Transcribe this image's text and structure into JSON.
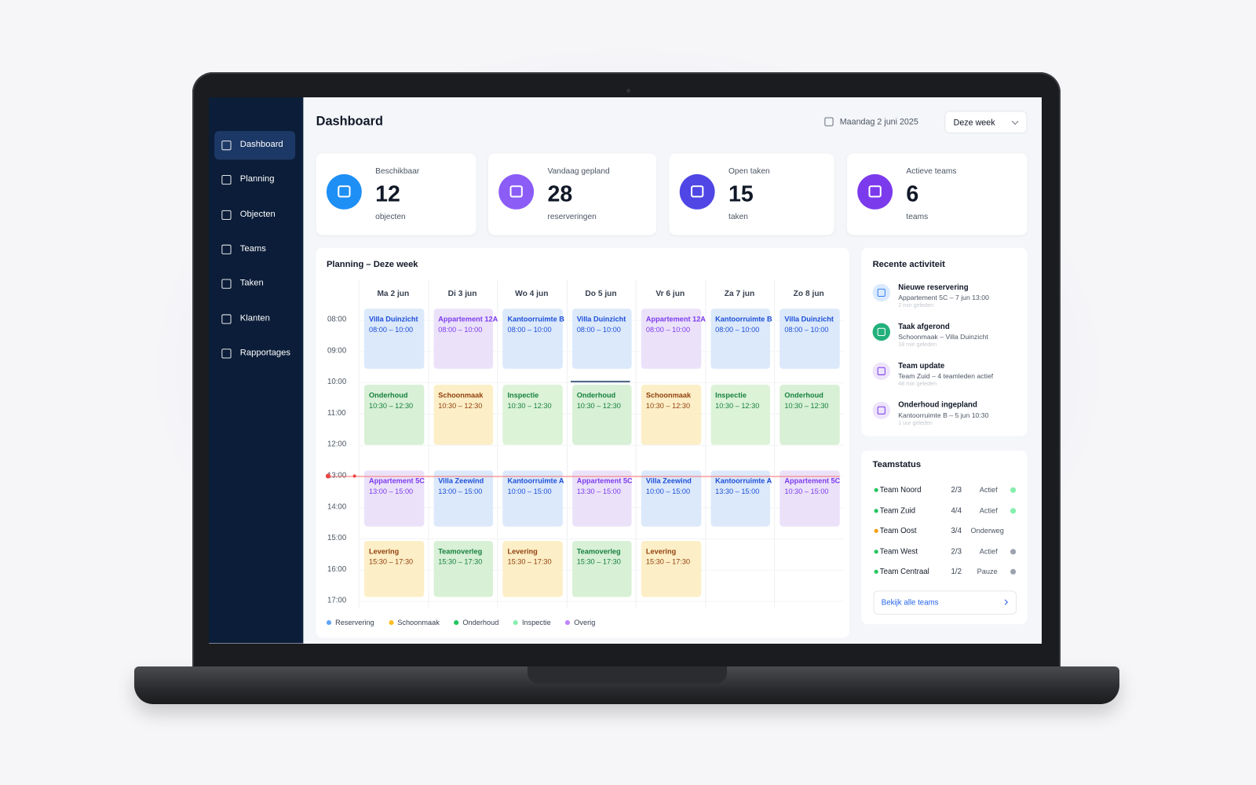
{
  "sidebar": {
    "active_index": 0,
    "items": [
      "Dashboard",
      "Planning",
      "Objecten",
      "Teams",
      "Taken",
      "Klanten",
      "Rapportages"
    ]
  },
  "header": {
    "title": "Dashboard",
    "date": "Maandag 2 juni 2025",
    "range": "Deze week"
  },
  "stats": [
    {
      "label": "Beschikbaar",
      "value": 12,
      "unit": "objecten",
      "color": "#1e8ff5"
    },
    {
      "label": "Vandaag gepland",
      "value": 28,
      "unit": "reserveringen",
      "color": "#8b5cf6"
    },
    {
      "label": "Open taken",
      "value": 15,
      "unit": "taken",
      "color": "#4f46e5"
    },
    {
      "label": "Actieve teams",
      "value": 6,
      "unit": "teams",
      "color": "#7c3aed"
    }
  ],
  "planning": {
    "title": "Planning – Deze week",
    "days": [
      "Ma 2 jun",
      "Di 3 jun",
      "Wo 4 jun",
      "Do 5 jun",
      "Vr 6 jun",
      "Za 7 jun",
      "Zo 8 jun"
    ],
    "times": [
      "08:00",
      "09:00",
      "10:00",
      "11:00",
      "12:00",
      "13:00",
      "14:00",
      "15:00",
      "16:00",
      "17:00"
    ],
    "rows": [
      [
        {
          "title": "Villa Duinzicht",
          "time": "08:00 – 10:00",
          "bg": "#dbe9fb",
          "fg": "#1d4ed8"
        },
        {
          "title": "Appartement 12A",
          "time": "08:00 – 10:00",
          "bg": "#ebe2fa",
          "fg": "#7c3aed"
        },
        {
          "title": "Kantoorruimte B",
          "time": "08:00 – 10:00",
          "bg": "#dbe9fb",
          "fg": "#1d4ed8"
        },
        {
          "title": "Villa Duinzicht",
          "time": "08:00 – 10:00",
          "bg": "#dbe9fb",
          "fg": "#1d4ed8"
        },
        {
          "title": "Appartement 12A",
          "time": "08:00 – 10:00",
          "bg": "#ebe2fa",
          "fg": "#7c3aed"
        },
        {
          "title": "Kantoorruimte B",
          "time": "08:00 – 10:00",
          "bg": "#dbe9fb",
          "fg": "#1d4ed8"
        },
        {
          "title": "Villa Duinzicht",
          "time": "08:00 – 10:00",
          "bg": "#dbe9fb",
          "fg": "#1d4ed8"
        }
      ],
      [
        {
          "title": "Onderhoud",
          "time": "10:30 – 12:30",
          "bg": "#d8f0d6",
          "fg": "#15803d"
        },
        {
          "title": "Schoonmaak",
          "time": "10:30 – 12:30",
          "bg": "#fcefc7",
          "fg": "#92400e"
        },
        {
          "title": "Inspectie",
          "time": "10:30 – 12:30",
          "bg": "#dcf3d8",
          "fg": "#16803c"
        },
        {
          "title": "Onderhoud",
          "time": "10:30 – 12:30",
          "bg": "#d8f0d6",
          "fg": "#15803d"
        },
        {
          "title": "Schoonmaak",
          "time": "10:30 – 12:30",
          "bg": "#fcefc7",
          "fg": "#92400e"
        },
        {
          "title": "Inspectie",
          "time": "10:30 – 12:30",
          "bg": "#dcf3d8",
          "fg": "#16803c"
        },
        {
          "title": "Onderhoud",
          "time": "10:30 – 12:30",
          "bg": "#d8f0d6",
          "fg": "#15803d"
        }
      ],
      [
        {
          "title": "Appartement 5C",
          "time": "13:00 – 15:00",
          "bg": "#ebe2fa",
          "fg": "#7c3aed"
        },
        {
          "title": "Villa Zeewind",
          "time": "13:00 – 15:00",
          "bg": "#dbe9fb",
          "fg": "#1d4ed8"
        },
        {
          "title": "Kantoorruimte A",
          "time": "10:00 – 15:00",
          "bg": "#dbe9fb",
          "fg": "#1d4ed8"
        },
        {
          "title": "Appartement 5C",
          "time": "13:30 – 15:00",
          "bg": "#ebe2fa",
          "fg": "#7c3aed"
        },
        {
          "title": "Villa Zeewind",
          "time": "10:00 – 15:00",
          "bg": "#dbe9fb",
          "fg": "#1d4ed8"
        },
        {
          "title": "Kantoorruimte A",
          "time": "13:30 – 15:00",
          "bg": "#dbe9fb",
          "fg": "#1d4ed8"
        },
        {
          "title": "Appartement 5C",
          "time": "10:30 – 15:00",
          "bg": "#ebe2fa",
          "fg": "#7c3aed"
        }
      ],
      [
        {
          "title": "Levering",
          "time": "15:30 – 17:30",
          "bg": "#fcefc7",
          "fg": "#92400e"
        },
        {
          "title": "Teamoverleg",
          "time": "15:30 – 17:30",
          "bg": "#d8f0d6",
          "fg": "#15803d"
        },
        {
          "title": "Levering",
          "time": "15:30 – 17:30",
          "bg": "#fcefc7",
          "fg": "#92400e"
        },
        {
          "title": "Teamoverleg",
          "time": "15:30 – 17:30",
          "bg": "#d8f0d6",
          "fg": "#15803d"
        },
        {
          "title": "Levering",
          "time": "15:30 – 17:30",
          "bg": "#fcefc7",
          "fg": "#92400e"
        }
      ]
    ],
    "legend": [
      {
        "name": "Reservering",
        "color": "#60a5fa"
      },
      {
        "name": "Schoonmaak",
        "color": "#fbbf24"
      },
      {
        "name": "Onderhoud",
        "color": "#22c55e"
      },
      {
        "name": "Inspectie",
        "color": "#86efac"
      },
      {
        "name": "Overig",
        "color": "#c084fc"
      }
    ]
  },
  "activity": {
    "title": "Recente activiteit",
    "items": [
      {
        "title": "Nieuwe reservering",
        "detail": "Appartement 5C – 7 jun 13:00",
        "time": "2 min geleden",
        "color": "#3b82f6",
        "bg": "#dbeafe"
      },
      {
        "title": "Taak afgerond",
        "detail": "Schoonmaak – Villa Duinzicht",
        "time": "18 min geleden",
        "color": "#ffffff",
        "bg": "#22b07d"
      },
      {
        "title": "Team update",
        "detail": "Team Zuid – 4 teamleden actief",
        "time": "48 min geleden",
        "color": "#7c3aed",
        "bg": "#ede4fb"
      },
      {
        "title": "Onderhoud ingepland",
        "detail": "Kantoorruimte B – 5 jun 10:30",
        "time": "1 uur geleden",
        "color": "#7c3aed",
        "bg": "#ede4fb"
      }
    ]
  },
  "teams": {
    "title": "Teamstatus",
    "rows": [
      {
        "name": "Team Noord",
        "count": "2/3",
        "status": "Actief",
        "dot": "#22c55e",
        "status_dot": "#86efac"
      },
      {
        "name": "Team Zuid",
        "count": "4/4",
        "status": "Actief",
        "dot": "#22c55e",
        "status_dot": "#86efac"
      },
      {
        "name": "Team Oost",
        "count": "3/4",
        "status": "Onderweg",
        "dot": "#f59e0b",
        "status_dot": null
      },
      {
        "name": "Team West",
        "count": "2/3",
        "status": "Actief",
        "dot": "#22c55e",
        "status_dot": "#9ca3af"
      },
      {
        "name": "Team Centraal",
        "count": "1/2",
        "status": "Pauze",
        "dot": "#22c55e",
        "status_dot": "#9ca3af"
      }
    ],
    "button": "Bekijk alle teams"
  }
}
